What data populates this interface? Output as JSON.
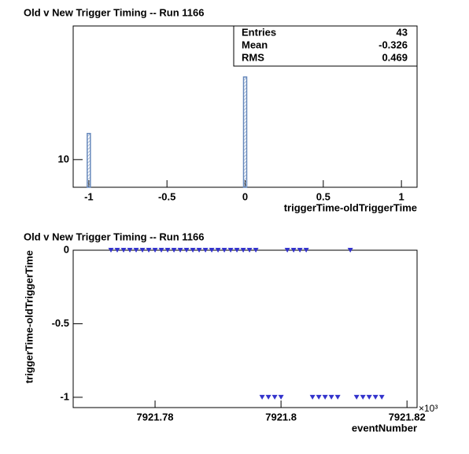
{
  "chart_data": [
    {
      "type": "bar",
      "title": "Old v New Trigger Timing -- Run 1166",
      "x_label": "triggerTime-oldTriggerTime",
      "x": [
        -1,
        0
      ],
      "values": [
        14,
        29
      ],
      "color": "#6688bb",
      "xlim": [
        -1.1,
        1.1
      ],
      "xticks": [
        -1,
        -0.5,
        0,
        0.5,
        1
      ],
      "ylim": [
        7,
        56
      ],
      "yticks": [
        10
      ],
      "log_y": true,
      "stats": [
        {
          "label": "Entries",
          "value": 43
        },
        {
          "label": "Mean",
          "value": -0.326
        },
        {
          "label": "RMS",
          "value": 0.469
        }
      ]
    },
    {
      "type": "scatter",
      "title": "Old v New Trigger Timing -- Run 1166",
      "x_label": "eventNumber",
      "y_label": "triggerTime-oldTriggerTime",
      "x_exponent": "×10³",
      "color": "#3333cc",
      "x": [
        7921.773,
        7921.774,
        7921.775,
        7921.776,
        7921.777,
        7921.778,
        7921.779,
        7921.78,
        7921.781,
        7921.782,
        7921.783,
        7921.784,
        7921.785,
        7921.786,
        7921.787,
        7921.788,
        7921.789,
        7921.79,
        7921.791,
        7921.792,
        7921.793,
        7921.794,
        7921.795,
        7921.796,
        7921.801,
        7921.802,
        7921.803,
        7921.804,
        7921.811,
        7921.797,
        7921.798,
        7921.799,
        7921.8,
        7921.805,
        7921.806,
        7921.807,
        7921.808,
        7921.809,
        7921.812,
        7921.813,
        7921.814,
        7921.815,
        7921.816
      ],
      "values": [
        0,
        0,
        0,
        0,
        0,
        0,
        0,
        0,
        0,
        0,
        0,
        0,
        0,
        0,
        0,
        0,
        0,
        0,
        0,
        0,
        0,
        0,
        0,
        0,
        0,
        0,
        0,
        0,
        0,
        -1,
        -1,
        -1,
        -1,
        -1,
        -1,
        -1,
        -1,
        -1,
        -1,
        -1,
        -1,
        -1,
        -1
      ],
      "xlim": [
        7921.767,
        7921.8216
      ],
      "xticks": [
        7921.78,
        7921.8,
        7921.82
      ],
      "ylim": [
        -1.07,
        0
      ],
      "yticks": [
        -1,
        -0.5,
        0
      ]
    }
  ]
}
